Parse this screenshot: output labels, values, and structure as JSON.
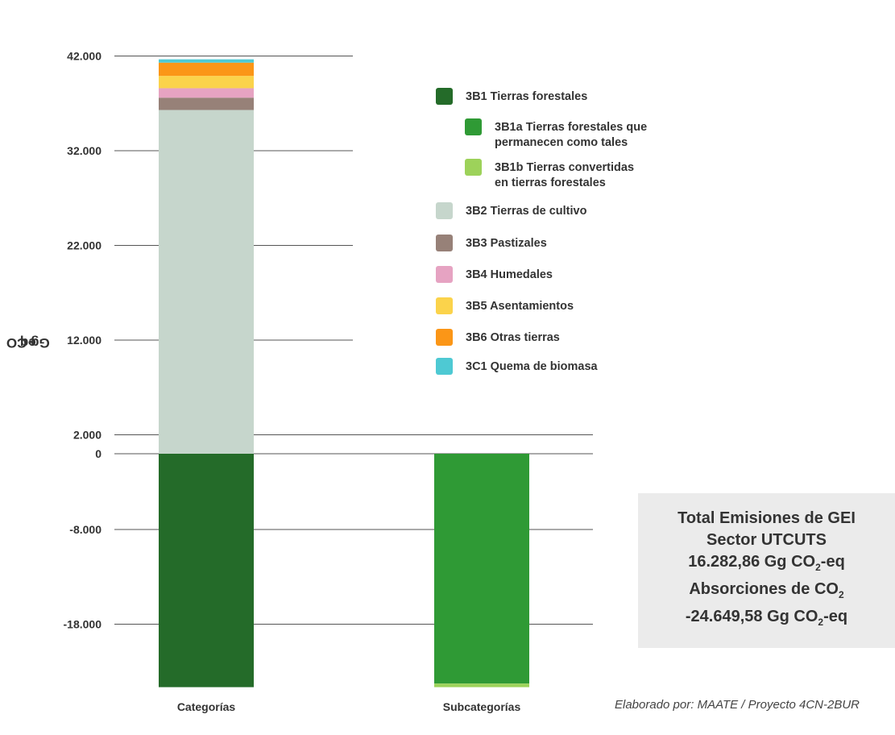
{
  "chart_data": {
    "type": "bar",
    "stacked": true,
    "categories": [
      "Categorías",
      "Subcategorías"
    ],
    "ylabel": "Gg CO2eq",
    "ytick_labels": [
      "42.000",
      "32.000",
      "22.000",
      "12.000",
      "2.000",
      "0",
      "-8.000",
      "-18.000"
    ],
    "ylim": [
      -25000,
      43000
    ],
    "grid": true,
    "legend_position": "right",
    "series": [
      {
        "name": "3B1 Tierras forestales",
        "color": "#246b29",
        "values": [
          -24650,
          null
        ],
        "legend_indent": false
      },
      {
        "name": "3B1a Tierras forestales que permanecen como tales",
        "color": "#2f9a35",
        "values": [
          null,
          -24270
        ],
        "legend_indent": true
      },
      {
        "name": "3B1b Tierras convertidas en tierras forestales",
        "color": "#9dd25a",
        "values": [
          null,
          -380
        ],
        "legend_indent": true
      },
      {
        "name": "3B2 Tierras de cultivo",
        "color": "#c6d6cc",
        "values": [
          36300,
          null
        ],
        "legend_indent": false
      },
      {
        "name": "3B3 Pastizales",
        "color": "#978178",
        "values": [
          1300,
          null
        ],
        "legend_indent": false
      },
      {
        "name": "3B4 Humedales",
        "color": "#e6a3c2",
        "values": [
          1000,
          null
        ],
        "legend_indent": false
      },
      {
        "name": "3B5 Asentamientos",
        "color": "#fbd34b",
        "values": [
          1300,
          null
        ],
        "legend_indent": false
      },
      {
        "name": "3B6 Otras tierras",
        "color": "#fb9617",
        "values": [
          1400,
          null
        ],
        "legend_indent": false
      },
      {
        "name": "3C1 Quema de biomasa",
        "color": "#4ec9d3",
        "values": [
          350,
          null
        ],
        "legend_indent": false
      }
    ]
  },
  "axis": {
    "ylabel_main": "Gg CO",
    "ylabel_sub": "2",
    "ylabel_tail": "eq"
  },
  "summary": {
    "line1": "Total Emisiones de GEI",
    "line2": "Sector UTCUTS",
    "line3_pre": "16.282,86 Gg CO",
    "line3_sub": "2",
    "line3_post": "-eq",
    "line4_pre": "Absorciones de CO",
    "line4_sub": "2",
    "line5_pre": "-24.649,58 Gg CO",
    "line5_sub": "2",
    "line5_post": "-eq"
  },
  "source": "Elaborado por: MAATE / Proyecto 4CN-2BUR"
}
